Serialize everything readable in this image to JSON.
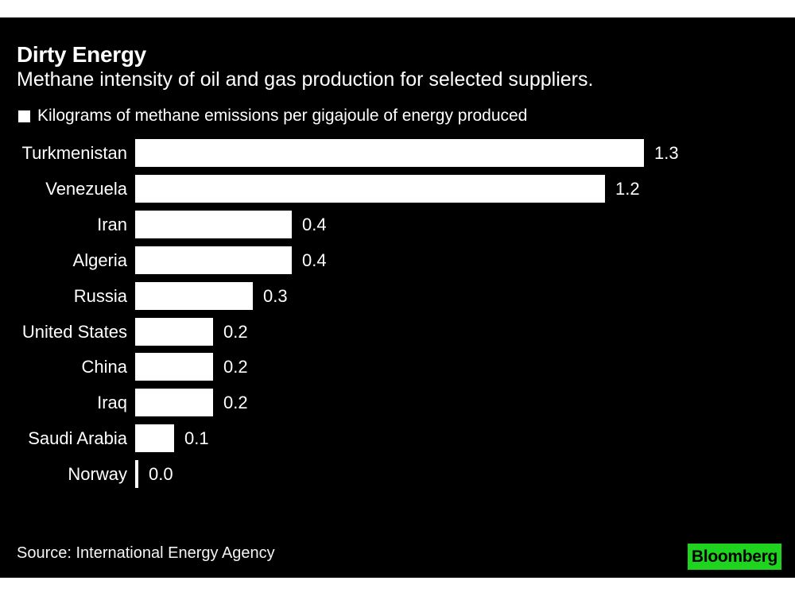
{
  "header": {
    "title": "Dirty Energy",
    "subtitle": "Methane intensity of oil and gas production for selected suppliers."
  },
  "legend": {
    "label": "Kilograms of methane emissions per gigajoule of energy produced",
    "marker_color": "#ffffff"
  },
  "chart_data": {
    "type": "bar",
    "orientation": "horizontal",
    "title": "Dirty Energy",
    "subtitle": "Methane intensity of oil and gas production for selected suppliers.",
    "series_label": "Kilograms of methane emissions per gigajoule of energy produced",
    "categories": [
      "Turkmenistan",
      "Venezuela",
      "Iran",
      "Algeria",
      "Russia",
      "United States",
      "China",
      "Iraq",
      "Saudi Arabia",
      "Norway"
    ],
    "values": [
      1.3,
      1.2,
      0.4,
      0.4,
      0.3,
      0.2,
      0.2,
      0.2,
      0.1,
      0.0
    ],
    "value_labels": [
      "1.3",
      "1.2",
      "0.4",
      "0.4",
      "0.3",
      "0.2",
      "0.2",
      "0.2",
      "0.1",
      "0.0"
    ],
    "xlim": [
      0,
      1.3
    ],
    "grid": false,
    "legend_position": "top-left",
    "bar_color": "#ffffff",
    "label_color": "#ffffff",
    "background": "#000000"
  },
  "footer": {
    "source": "Source: International Energy Agency",
    "brand": "Bloomberg",
    "brand_bg": "#1fd41f",
    "brand_text_color": "#000000"
  },
  "colors": {
    "page_bg": "#ffffff",
    "panel_bg": "#000000",
    "text": "#ffffff"
  }
}
